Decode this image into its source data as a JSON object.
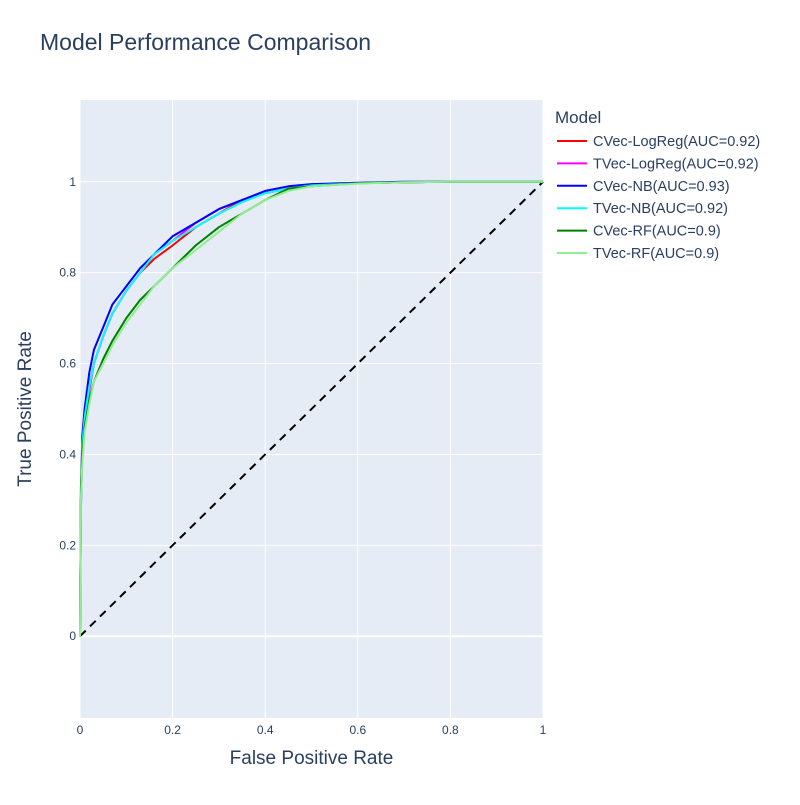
{
  "chart_data": {
    "type": "line",
    "title": "Model Performance Comparison",
    "xlabel": "False Positive Rate",
    "ylabel": "True Positive Rate",
    "xlim": [
      0,
      1
    ],
    "ylim": [
      -0.18,
      1.18
    ],
    "x_ticks": [
      0,
      0.2,
      0.4,
      0.6,
      0.8,
      1
    ],
    "y_ticks": [
      0,
      0.2,
      0.4,
      0.6,
      0.8,
      1
    ],
    "grid": true,
    "plot_background": "#e5ecf6",
    "legend": {
      "title": "Model",
      "position": "right"
    },
    "series": [
      {
        "name": "CVec-LogReg(AUC=0.92)",
        "color": "#ff0000",
        "x": [
          0,
          0.002,
          0.005,
          0.01,
          0.02,
          0.03,
          0.05,
          0.07,
          0.1,
          0.13,
          0.16,
          0.2,
          0.25,
          0.3,
          0.35,
          0.4,
          0.45,
          0.5,
          0.6,
          0.7,
          0.8,
          0.9,
          1
        ],
        "y": [
          0,
          0.3,
          0.42,
          0.48,
          0.55,
          0.6,
          0.66,
          0.71,
          0.76,
          0.8,
          0.83,
          0.86,
          0.9,
          0.93,
          0.96,
          0.975,
          0.985,
          0.992,
          0.997,
          0.999,
          1,
          1,
          1
        ]
      },
      {
        "name": "TVec-LogReg(AUC=0.92)",
        "color": "#ff00ff",
        "x": [
          0,
          0.002,
          0.005,
          0.01,
          0.02,
          0.03,
          0.05,
          0.07,
          0.1,
          0.13,
          0.16,
          0.2,
          0.25,
          0.3,
          0.35,
          0.4,
          0.45,
          0.5,
          0.6,
          0.7,
          0.8,
          0.9,
          1
        ],
        "y": [
          0,
          0.28,
          0.4,
          0.47,
          0.54,
          0.6,
          0.66,
          0.71,
          0.76,
          0.8,
          0.84,
          0.87,
          0.91,
          0.94,
          0.96,
          0.975,
          0.985,
          0.992,
          0.997,
          0.999,
          1,
          1,
          1
        ]
      },
      {
        "name": "CVec-NB(AUC=0.93)",
        "color": "#0000ff",
        "x": [
          0,
          0.002,
          0.005,
          0.01,
          0.02,
          0.03,
          0.05,
          0.07,
          0.1,
          0.13,
          0.16,
          0.2,
          0.25,
          0.3,
          0.35,
          0.4,
          0.45,
          0.5,
          0.6,
          0.7,
          0.8,
          0.9,
          1
        ],
        "y": [
          0,
          0.3,
          0.44,
          0.5,
          0.58,
          0.63,
          0.68,
          0.73,
          0.77,
          0.81,
          0.84,
          0.88,
          0.91,
          0.94,
          0.96,
          0.98,
          0.99,
          0.995,
          0.998,
          1,
          1,
          1,
          1
        ]
      },
      {
        "name": "TVec-NB(AUC=0.92)",
        "color": "#00ffff",
        "x": [
          0,
          0.002,
          0.005,
          0.01,
          0.02,
          0.03,
          0.05,
          0.07,
          0.1,
          0.13,
          0.16,
          0.2,
          0.25,
          0.3,
          0.35,
          0.4,
          0.45,
          0.5,
          0.6,
          0.7,
          0.8,
          0.9,
          1
        ],
        "y": [
          0,
          0.28,
          0.42,
          0.48,
          0.55,
          0.6,
          0.66,
          0.71,
          0.76,
          0.8,
          0.84,
          0.87,
          0.9,
          0.93,
          0.955,
          0.975,
          0.985,
          0.992,
          0.997,
          0.999,
          1,
          1,
          1
        ]
      },
      {
        "name": "CVec-RF(AUC=0.9)",
        "color": "#008000",
        "x": [
          0,
          0.002,
          0.005,
          0.01,
          0.02,
          0.03,
          0.05,
          0.07,
          0.1,
          0.13,
          0.16,
          0.2,
          0.25,
          0.3,
          0.35,
          0.4,
          0.45,
          0.5,
          0.6,
          0.7,
          0.8,
          0.9,
          1
        ],
        "y": [
          0,
          0.33,
          0.4,
          0.46,
          0.52,
          0.56,
          0.61,
          0.65,
          0.7,
          0.74,
          0.77,
          0.81,
          0.86,
          0.9,
          0.93,
          0.96,
          0.985,
          0.99,
          0.997,
          0.999,
          1,
          1,
          1
        ]
      },
      {
        "name": "TVec-RF(AUC=0.9)",
        "color": "#90ee90",
        "x": [
          0,
          0.002,
          0.005,
          0.01,
          0.02,
          0.03,
          0.05,
          0.07,
          0.1,
          0.13,
          0.16,
          0.2,
          0.25,
          0.3,
          0.35,
          0.4,
          0.45,
          0.5,
          0.6,
          0.7,
          0.8,
          0.9,
          1
        ],
        "y": [
          0,
          0.3,
          0.38,
          0.45,
          0.51,
          0.56,
          0.6,
          0.64,
          0.69,
          0.73,
          0.77,
          0.81,
          0.85,
          0.89,
          0.93,
          0.96,
          0.98,
          0.99,
          0.996,
          0.999,
          1,
          1,
          1
        ]
      }
    ],
    "reference_line": {
      "x": [
        0,
        1
      ],
      "y": [
        0,
        1
      ],
      "color": "#000000",
      "style": "dashed"
    }
  }
}
